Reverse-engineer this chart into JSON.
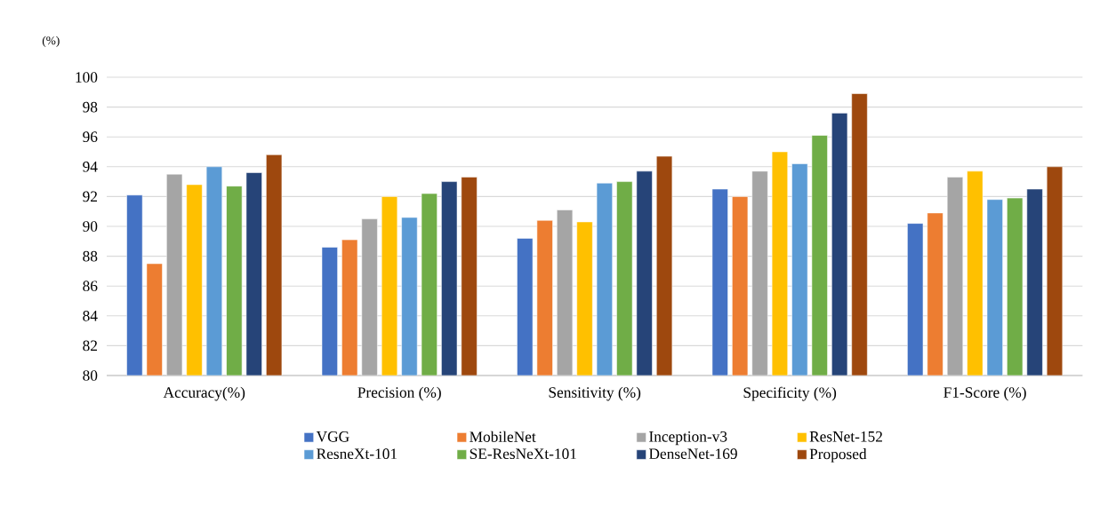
{
  "chart_data": {
    "type": "bar",
    "ylabel": "(%)",
    "categories": [
      "Accuracy(%)",
      "Precision (%)",
      "Sensitivity (%)",
      "Specificity (%)",
      "F1-Score (%)"
    ],
    "series": [
      {
        "name": "VGG",
        "color": "#4472c4",
        "values": [
          92.1,
          88.6,
          89.2,
          92.5,
          90.2
        ]
      },
      {
        "name": "MobileNet",
        "color": "#ed7d31",
        "values": [
          87.5,
          89.1,
          90.4,
          92.0,
          90.9
        ]
      },
      {
        "name": "Inception-v3",
        "color": "#a5a5a5",
        "values": [
          93.5,
          90.5,
          91.1,
          93.7,
          93.3
        ]
      },
      {
        "name": "ResNet-152",
        "color": "#ffc000",
        "values": [
          92.8,
          92.0,
          90.3,
          95.0,
          93.7
        ]
      },
      {
        "name": "ResneXt-101",
        "color": "#5b9bd5",
        "values": [
          94.0,
          90.6,
          92.9,
          94.2,
          91.8
        ]
      },
      {
        "name": "SE-ResNeXt-101",
        "color": "#70ad47",
        "values": [
          92.7,
          92.2,
          93.0,
          96.1,
          91.9
        ]
      },
      {
        "name": "DenseNet-169",
        "color": "#264478",
        "values": [
          93.6,
          93.0,
          93.7,
          97.6,
          92.5
        ]
      },
      {
        "name": "Proposed",
        "color": "#9e480e",
        "values": [
          94.8,
          93.3,
          94.7,
          98.9,
          94.0
        ]
      }
    ],
    "ylim": [
      80,
      100
    ],
    "yticks": [
      80,
      82,
      84,
      86,
      88,
      90,
      92,
      94,
      96,
      98,
      100
    ],
    "grid": "y",
    "legend": "bottom"
  }
}
